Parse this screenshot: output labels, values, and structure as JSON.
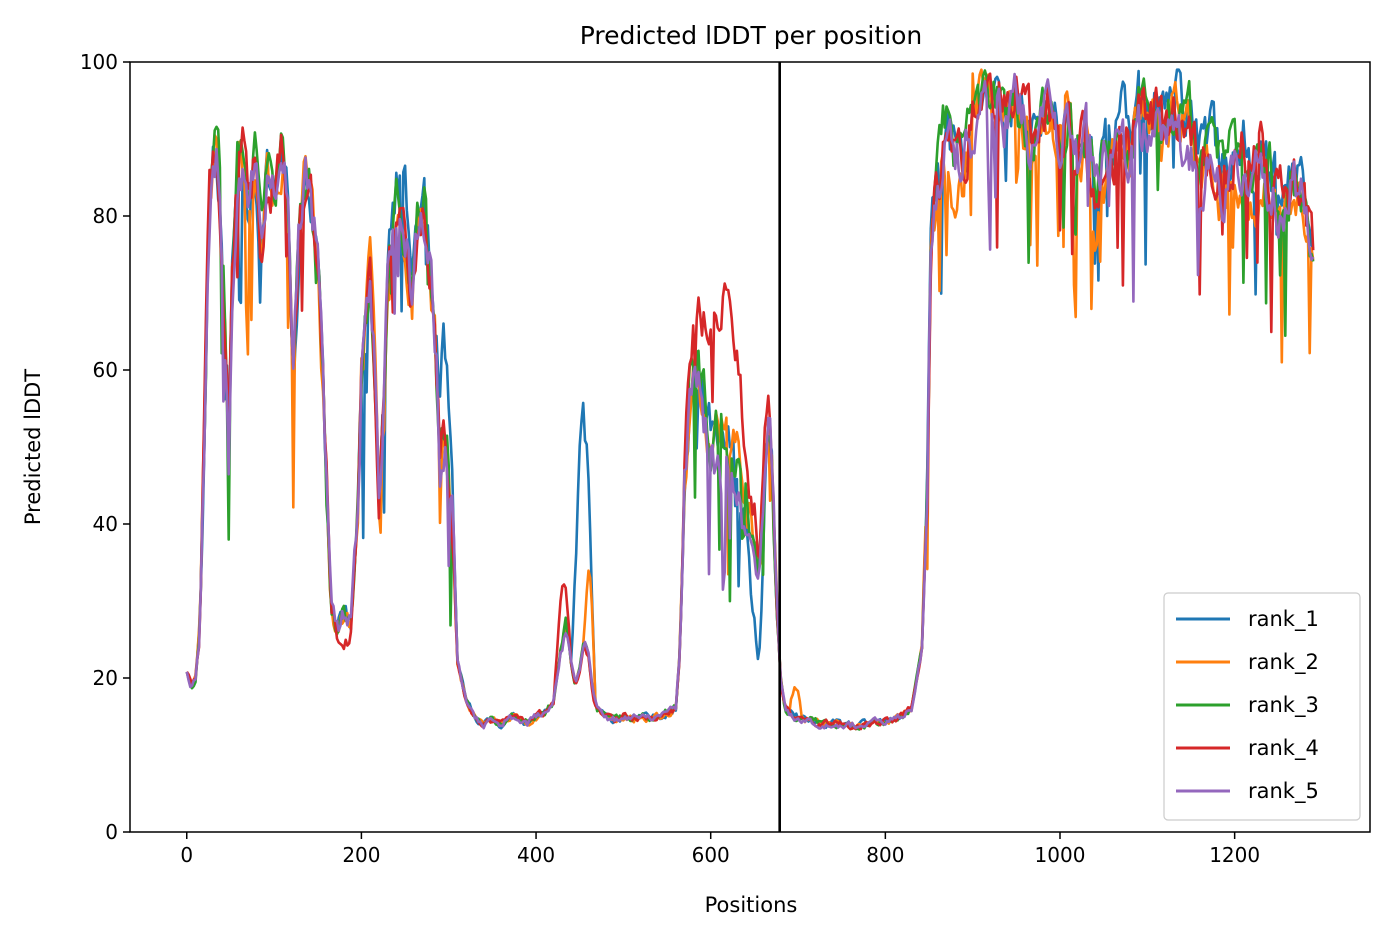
{
  "chart_data": {
    "type": "line",
    "title": "Predicted lDDT per position",
    "xlabel": "Positions",
    "ylabel": "Predicted lDDT",
    "xlim": [
      -65,
      1355
    ],
    "ylim": [
      0,
      100
    ],
    "xticks": [
      0,
      200,
      400,
      600,
      800,
      1000,
      1200
    ],
    "yticks": [
      0,
      20,
      40,
      60,
      80,
      100
    ],
    "grid": false,
    "legend_position": "lower-right",
    "vline": {
      "x": 679,
      "color": "#000000"
    },
    "series_anchors": [
      [
        0,
        21
      ],
      [
        5,
        19
      ],
      [
        10,
        20
      ],
      [
        15,
        27
      ],
      [
        20,
        52
      ],
      [
        25,
        80
      ],
      [
        30,
        88
      ],
      [
        35,
        90
      ],
      [
        40,
        75
      ],
      [
        45,
        62
      ],
      [
        48,
        50
      ],
      [
        52,
        72
      ],
      [
        58,
        86
      ],
      [
        65,
        88
      ],
      [
        72,
        83
      ],
      [
        78,
        87
      ],
      [
        85,
        76
      ],
      [
        92,
        86
      ],
      [
        100,
        84
      ],
      [
        108,
        88
      ],
      [
        115,
        85
      ],
      [
        122,
        58
      ],
      [
        128,
        76
      ],
      [
        135,
        86
      ],
      [
        142,
        82
      ],
      [
        150,
        76
      ],
      [
        155,
        62
      ],
      [
        160,
        45
      ],
      [
        165,
        30
      ],
      [
        172,
        26
      ],
      [
        180,
        28
      ],
      [
        188,
        27
      ],
      [
        195,
        40
      ],
      [
        200,
        60
      ],
      [
        205,
        65
      ],
      [
        210,
        74
      ],
      [
        215,
        62
      ],
      [
        220,
        42
      ],
      [
        225,
        55
      ],
      [
        230,
        72
      ],
      [
        240,
        80
      ],
      [
        250,
        78
      ],
      [
        258,
        70
      ],
      [
        265,
        80
      ],
      [
        272,
        81
      ],
      [
        278,
        74
      ],
      [
        285,
        64
      ],
      [
        290,
        48
      ],
      [
        295,
        52
      ],
      [
        300,
        46
      ],
      [
        305,
        40
      ],
      [
        310,
        22
      ],
      [
        320,
        17
      ],
      [
        330,
        15
      ],
      [
        340,
        14
      ],
      [
        350,
        14.5
      ],
      [
        360,
        14
      ],
      [
        370,
        14.8
      ],
      [
        380,
        15
      ],
      [
        390,
        14.2
      ],
      [
        400,
        15
      ],
      [
        410,
        15.5
      ],
      [
        420,
        17
      ],
      [
        430,
        25
      ],
      [
        435,
        27
      ],
      [
        440,
        22
      ],
      [
        445,
        19
      ],
      [
        450,
        21
      ],
      [
        455,
        25
      ],
      [
        460,
        23
      ],
      [
        465,
        18
      ],
      [
        470,
        16
      ],
      [
        480,
        15
      ],
      [
        490,
        14.5
      ],
      [
        500,
        15
      ],
      [
        510,
        14.6
      ],
      [
        520,
        15
      ],
      [
        530,
        14.8
      ],
      [
        540,
        15
      ],
      [
        550,
        15.5
      ],
      [
        560,
        16
      ],
      [
        565,
        24
      ],
      [
        570,
        45
      ],
      [
        575,
        55
      ],
      [
        580,
        60
      ],
      [
        590,
        57
      ],
      [
        600,
        52
      ],
      [
        610,
        55
      ],
      [
        620,
        54
      ],
      [
        630,
        50
      ],
      [
        640,
        45
      ],
      [
        650,
        40
      ],
      [
        655,
        34
      ],
      [
        660,
        45
      ],
      [
        665,
        55
      ],
      [
        670,
        48
      ],
      [
        675,
        32
      ],
      [
        680,
        20
      ],
      [
        685,
        16
      ],
      [
        695,
        15
      ],
      [
        710,
        14.5
      ],
      [
        730,
        14
      ],
      [
        750,
        14
      ],
      [
        770,
        13.8
      ],
      [
        790,
        14.2
      ],
      [
        810,
        14.5
      ],
      [
        830,
        16
      ],
      [
        842,
        24
      ],
      [
        848,
        45
      ],
      [
        852,
        75
      ],
      [
        860,
        85
      ],
      [
        870,
        90
      ],
      [
        880,
        87
      ],
      [
        890,
        86
      ],
      [
        900,
        95
      ],
      [
        910,
        96
      ],
      [
        920,
        94
      ],
      [
        930,
        95
      ],
      [
        940,
        92
      ],
      [
        950,
        96
      ],
      [
        960,
        92
      ],
      [
        970,
        90
      ],
      [
        980,
        93
      ],
      [
        990,
        94
      ],
      [
        1000,
        91
      ],
      [
        1010,
        93
      ],
      [
        1020,
        88
      ],
      [
        1030,
        90
      ],
      [
        1040,
        84
      ],
      [
        1050,
        88
      ],
      [
        1060,
        87
      ],
      [
        1070,
        91
      ],
      [
        1080,
        89
      ],
      [
        1090,
        94
      ],
      [
        1100,
        92
      ],
      [
        1110,
        93
      ],
      [
        1120,
        90
      ],
      [
        1130,
        94
      ],
      [
        1140,
        92
      ],
      [
        1150,
        91
      ],
      [
        1160,
        85
      ],
      [
        1170,
        89
      ],
      [
        1180,
        86
      ],
      [
        1190,
        84
      ],
      [
        1200,
        87
      ],
      [
        1210,
        88
      ],
      [
        1220,
        85
      ],
      [
        1230,
        88
      ],
      [
        1240,
        85
      ],
      [
        1250,
        82
      ],
      [
        1260,
        83
      ],
      [
        1270,
        84
      ],
      [
        1280,
        82
      ],
      [
        1290,
        75
      ]
    ],
    "series": [
      {
        "name": "rank_1",
        "color": "#1f77b4",
        "seed": 11,
        "bumps": [
          [
            440,
            468,
            28
          ],
          [
            285,
            305,
            12
          ],
          [
            225,
            270,
            4
          ],
          [
            600,
            680,
            -6
          ],
          [
            640,
            665,
            -8
          ],
          [
            1000,
            1290,
            3
          ]
        ]
      },
      {
        "name": "rank_2",
        "color": "#ff7f0e",
        "seed": 23,
        "bumps": [
          [
            455,
            468,
            12
          ],
          [
            690,
            705,
            4
          ],
          [
            600,
            640,
            -2
          ],
          [
            860,
            900,
            -4
          ],
          [
            1030,
            1060,
            -6
          ],
          [
            1150,
            1290,
            -4
          ]
        ]
      },
      {
        "name": "rank_3",
        "color": "#2ca02c",
        "seed": 37,
        "bumps": [
          [
            600,
            660,
            -4
          ],
          [
            860,
            880,
            3
          ],
          [
            1100,
            1290,
            2
          ]
        ]
      },
      {
        "name": "rank_4",
        "color": "#d62728",
        "seed": 41,
        "bumps": [
          [
            570,
            650,
            14
          ],
          [
            420,
            440,
            6
          ],
          [
            170,
            190,
            -3
          ],
          [
            1030,
            1060,
            -4
          ]
        ]
      },
      {
        "name": "rank_5",
        "color": "#9467bd",
        "seed": 53,
        "bumps": [
          [
            585,
            660,
            -8
          ],
          [
            895,
            905,
            -8
          ],
          [
            1000,
            1290,
            -2
          ]
        ]
      }
    ]
  }
}
